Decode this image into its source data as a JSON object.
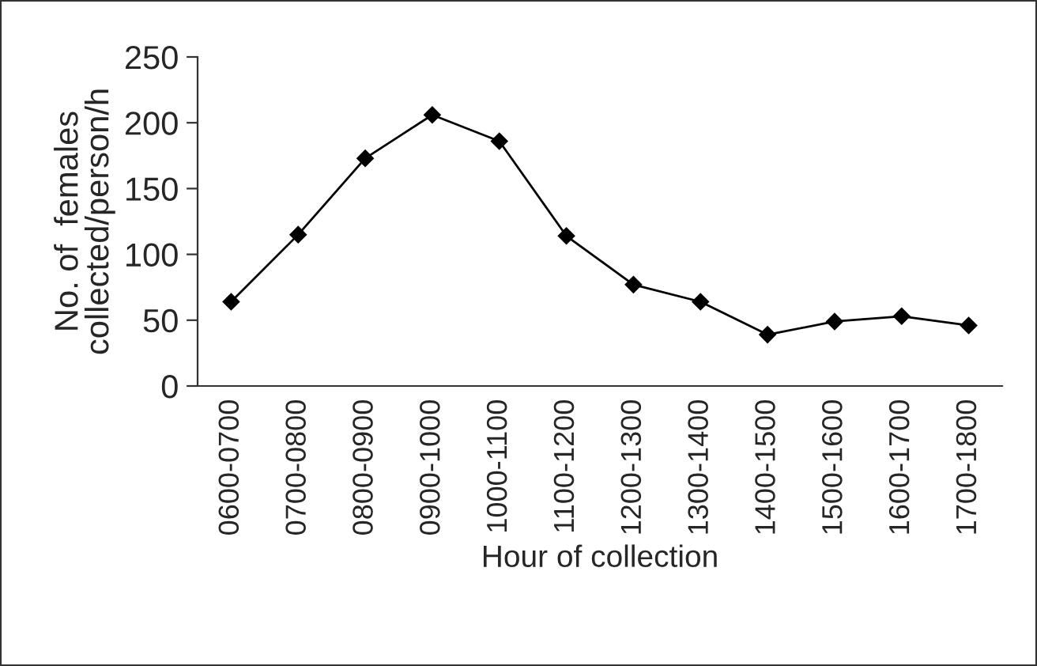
{
  "chart_data": {
    "type": "line",
    "xlabel": "Hour of collection",
    "ylabel": "No. of  females\ncollected/person/h",
    "categories": [
      "0600-0700",
      "0700-0800",
      "0800-0900",
      "0900-1000",
      "1000-1100",
      "1100-1200",
      "1200-1300",
      "1300-1400",
      "1400-1500",
      "1500-1600",
      "1600-1700",
      "1700-1800"
    ],
    "series": [
      {
        "color": "#000000",
        "values": [
          64,
          115,
          173,
          206,
          186,
          114,
          77,
          64,
          39,
          49,
          53,
          46
        ]
      }
    ],
    "ylim": [
      0,
      250
    ],
    "yticks": [
      0,
      50,
      100,
      150,
      200,
      250
    ],
    "marker": "diamond",
    "line_style": "solid",
    "grid": false,
    "legend": false
  }
}
